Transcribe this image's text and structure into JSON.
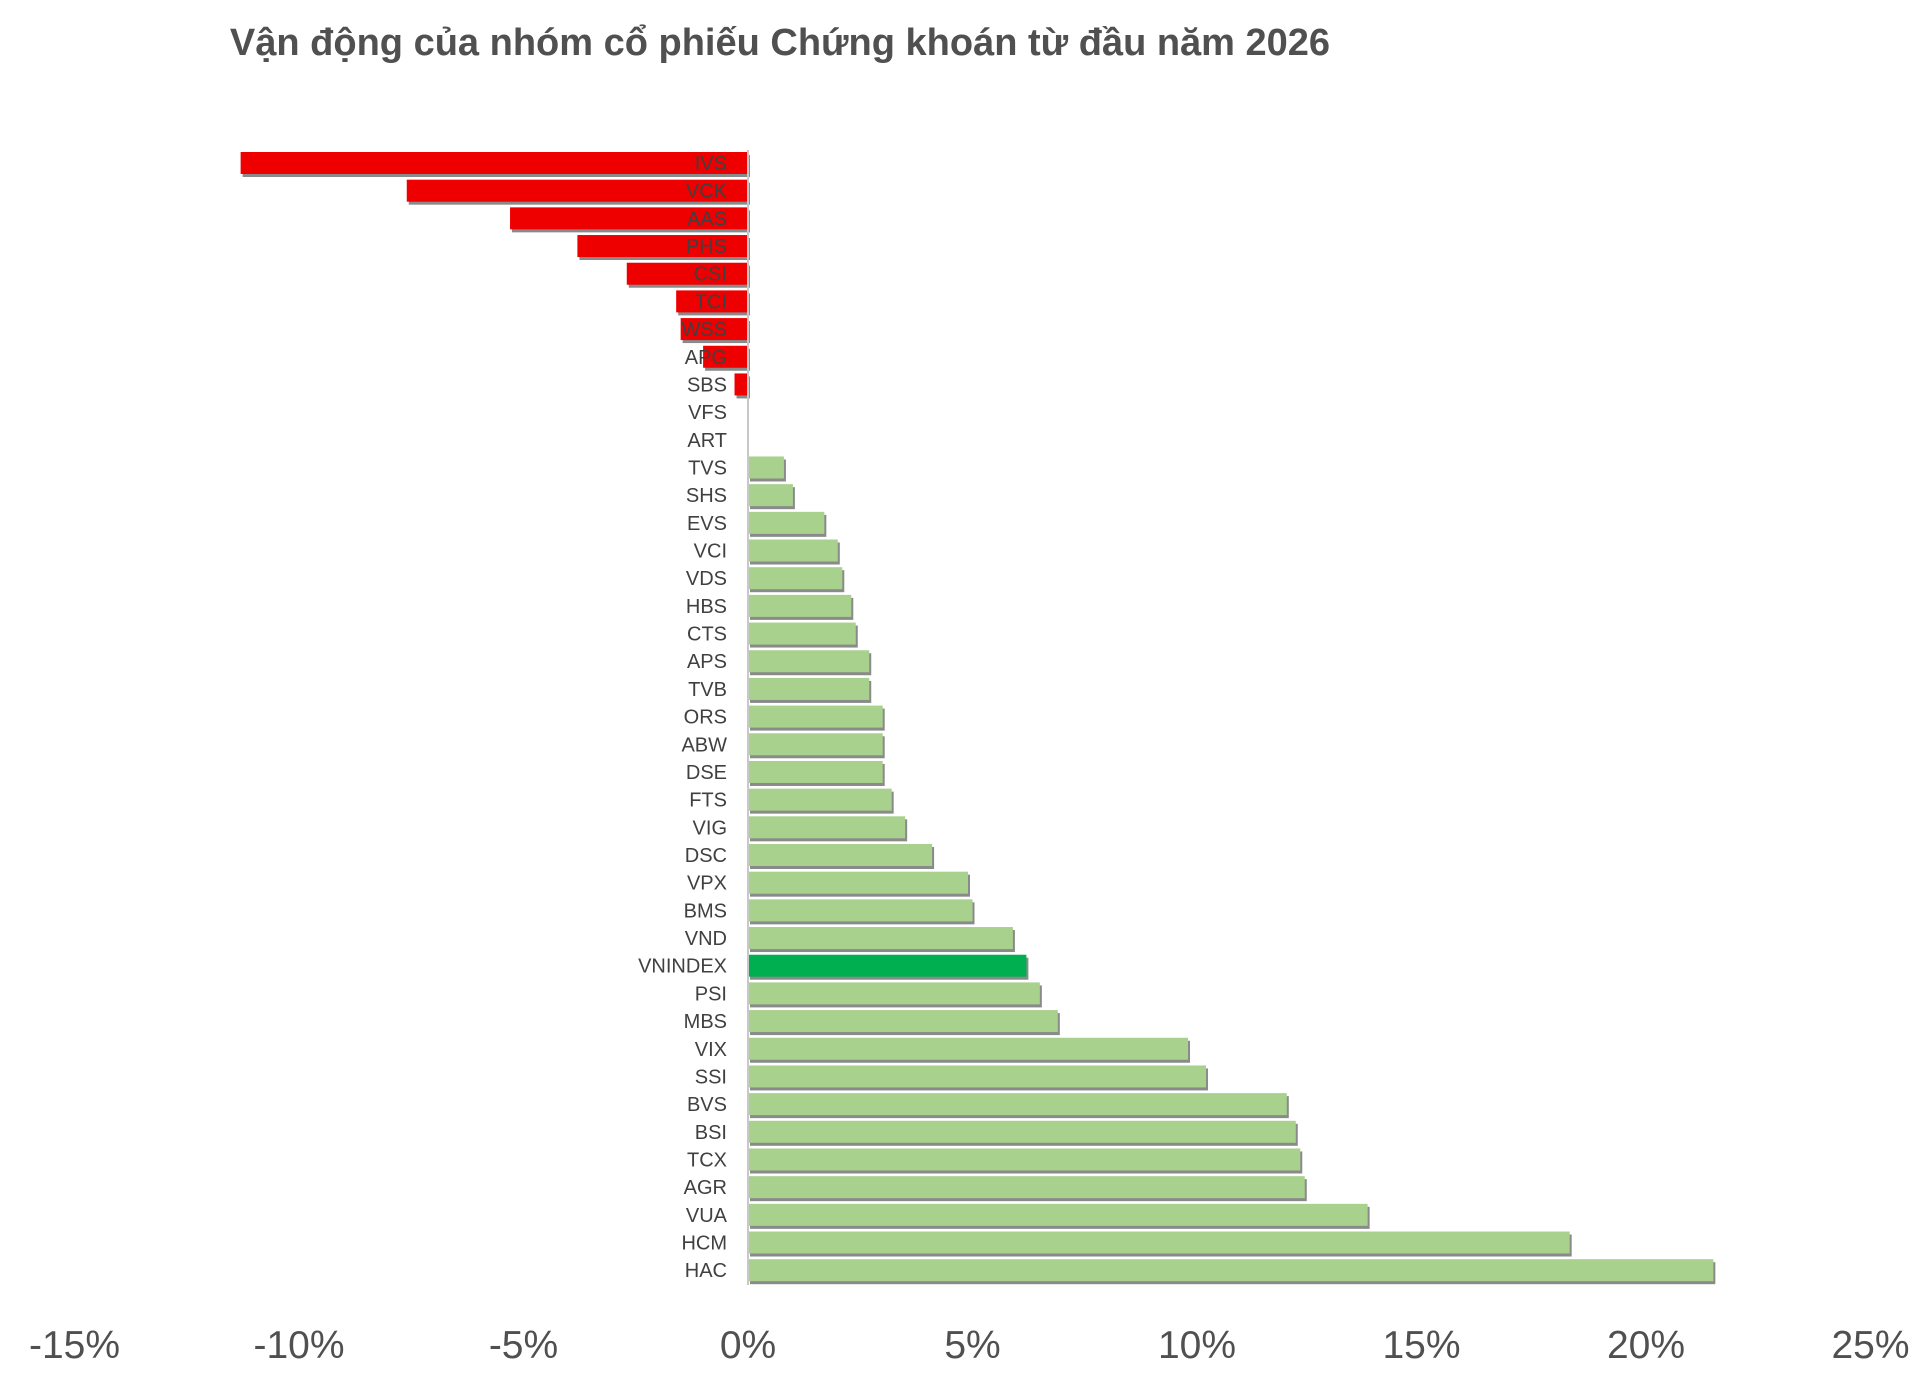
{
  "chart_data": {
    "type": "bar",
    "orientation": "horizontal",
    "title": "Vận động của nhóm cổ phiếu Chứng khoán từ đầu năm 2026",
    "xlabel": "",
    "ylabel": "",
    "xlim": [
      -15,
      25
    ],
    "xticks": [
      -15,
      -10,
      -5,
      0,
      5,
      10,
      15,
      20,
      25
    ],
    "xtick_labels": [
      "-15%",
      "-10%",
      "-5%",
      "0%",
      "5%",
      "10%",
      "15%",
      "20%",
      "25%"
    ],
    "grid": false,
    "legend": "none",
    "colors": {
      "negative": "#ee0000",
      "positive": "#a9d18e",
      "highlight": "#00b050",
      "shadow": "#8a8a8a",
      "axis": "#c8c8c8"
    },
    "highlight_category": "VNINDEX",
    "categories": [
      "IVS",
      "VCK",
      "AAS",
      "PHS",
      "CSI",
      "TCI",
      "WSS",
      "APG",
      "SBS",
      "VFS",
      "ART",
      "TVS",
      "SHS",
      "EVS",
      "VCI",
      "VDS",
      "HBS",
      "CTS",
      "APS",
      "TVB",
      "ORS",
      "ABW",
      "DSE",
      "FTS",
      "VIG",
      "DSC",
      "VPX",
      "BMS",
      "VND",
      "VNINDEX",
      "PSI",
      "MBS",
      "VIX",
      "SSI",
      "BVS",
      "BSI",
      "TCX",
      "AGR",
      "VUA",
      "HCM",
      "HAC"
    ],
    "values": [
      -11.3,
      -7.6,
      -5.3,
      -3.8,
      -2.7,
      -1.6,
      -1.5,
      -1.0,
      -0.3,
      0.0,
      0.0,
      0.8,
      1.0,
      1.7,
      2.0,
      2.1,
      2.3,
      2.4,
      2.7,
      2.7,
      3.0,
      3.0,
      3.0,
      3.2,
      3.5,
      4.1,
      4.9,
      5.0,
      5.9,
      6.2,
      6.5,
      6.9,
      9.8,
      10.2,
      12.0,
      12.2,
      12.3,
      12.4,
      13.8,
      18.3,
      21.5
    ]
  }
}
